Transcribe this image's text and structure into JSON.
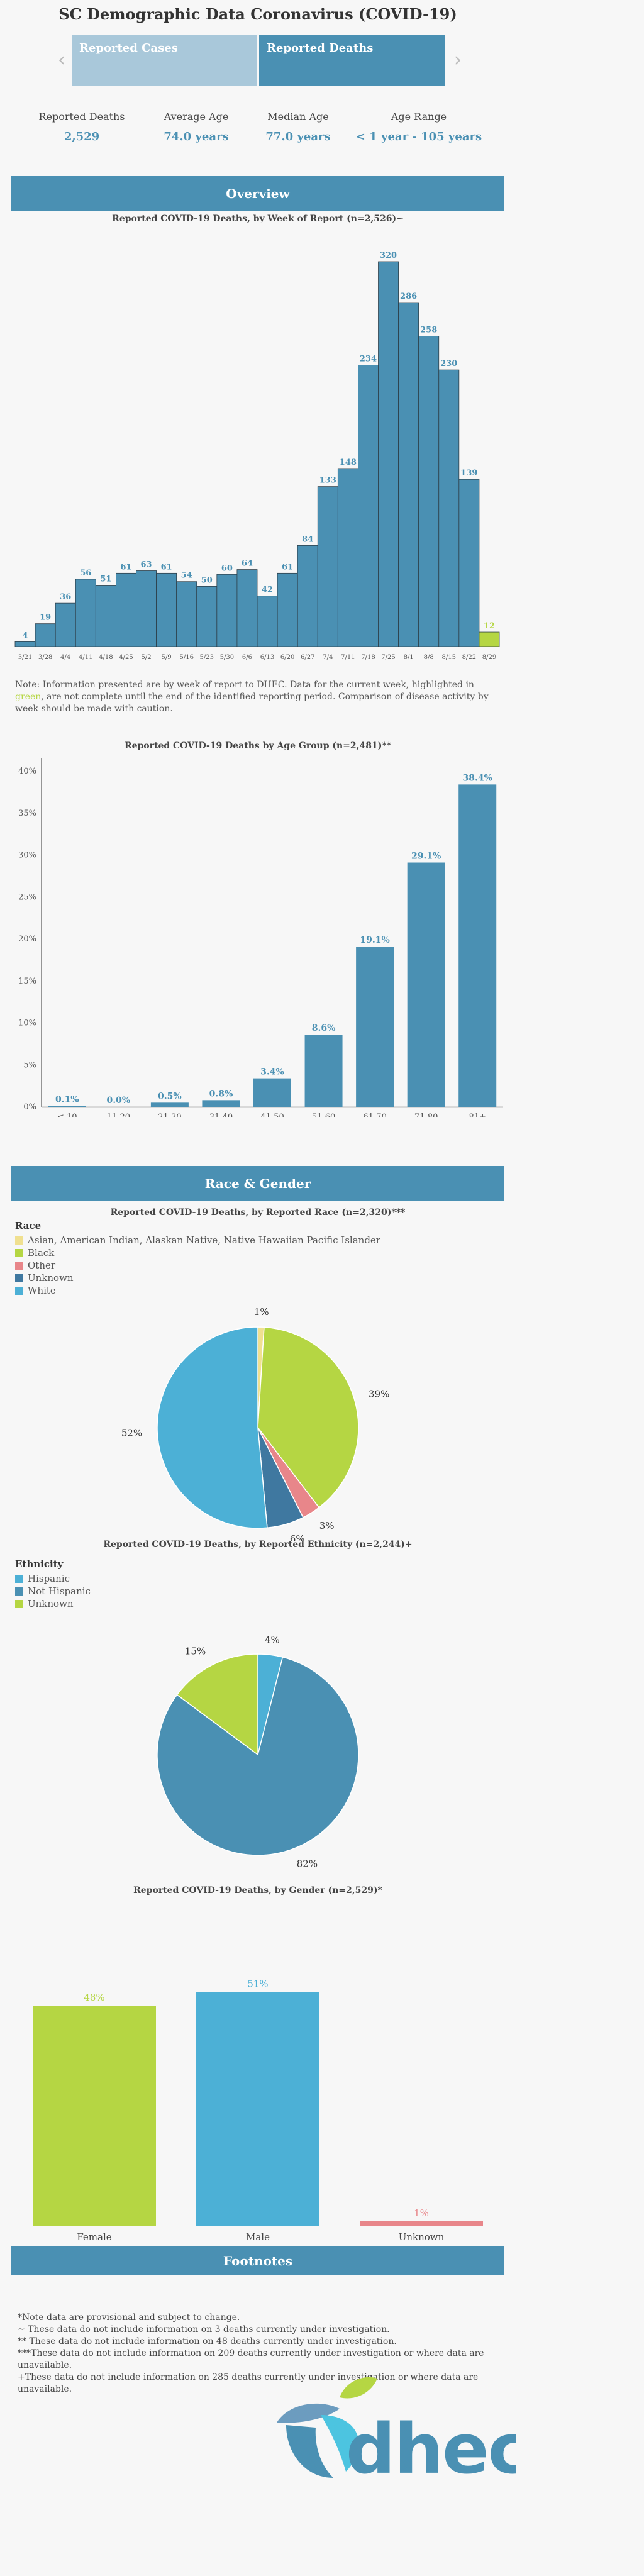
{
  "page_title": "SC Demographic Data Coronavirus (COVID-19)",
  "tabs": [
    {
      "label": "Reported Cases",
      "active": false
    },
    {
      "label": "Reported Deaths",
      "active": true
    }
  ],
  "nav": {
    "prev_icon": "chevron-left-icon",
    "next_icon": "chevron-right-icon"
  },
  "stats": [
    {
      "label": "Reported Deaths",
      "value": "2,529"
    },
    {
      "label": "Average Age",
      "value": "74.0 years"
    },
    {
      "label": "Median Age",
      "value": "77.0 years"
    },
    {
      "label": "Age Range",
      "value": "< 1 year - 105 years"
    }
  ],
  "sections": {
    "overview": "Overview",
    "race_gender": "Race & Gender",
    "footnotes": "Footnotes"
  },
  "note": {
    "before": "Note: Information presented are by week of report to DHEC. Data for the current week, highlighted in ",
    "highlight": "green",
    "after": ", are not complete until the end of the identified reporting period. Comparison of disease activity by week should be made with caution."
  },
  "colors": {
    "blue": "#4a90b3",
    "green": "#b5d643",
    "sky": "#4cb0d6",
    "salmon": "#e8868a",
    "yellow": "#f0e090",
    "darkblue": "#3f78a0"
  },
  "chart_data": [
    {
      "type": "bar",
      "title": "Reported COVID-19 Deaths, by Week of Report (n=2,526)~",
      "categories": [
        "3/21",
        "3/28",
        "4/4",
        "4/11",
        "4/18",
        "4/25",
        "5/2",
        "5/9",
        "5/16",
        "5/23",
        "5/30",
        "6/6",
        "6/13",
        "6/20",
        "6/27",
        "7/4",
        "7/11",
        "7/18",
        "7/25",
        "8/1",
        "8/8",
        "8/15",
        "8/22",
        "8/29"
      ],
      "values": [
        4,
        19,
        36,
        56,
        51,
        61,
        63,
        61,
        54,
        50,
        60,
        64,
        42,
        61,
        84,
        133,
        148,
        234,
        320,
        286,
        258,
        230,
        139,
        12
      ],
      "highlight_last": true
    },
    {
      "type": "bar",
      "title": "Reported COVID-19 Deaths by Age Group (n=2,481)**",
      "categories": [
        "≤ 10",
        "11-20",
        "21-30",
        "31-40",
        "41-50",
        "51-60",
        "61-70",
        "71-80",
        "81+"
      ],
      "values": [
        0.1,
        0.0,
        0.5,
        0.8,
        3.4,
        8.6,
        19.1,
        29.1,
        38.4
      ],
      "value_labels": [
        "0.1%",
        "0.0%",
        "0.5%",
        "0.8%",
        "3.4%",
        "8.6%",
        "19.1%",
        "29.1%",
        "38.4%"
      ],
      "y_ticks": [
        "0%",
        "5%",
        "10%",
        "15%",
        "20%",
        "25%",
        "30%",
        "35%",
        "40%"
      ],
      "ylim": [
        0,
        40
      ]
    },
    {
      "type": "pie",
      "title": "Reported COVID-19 Deaths, by Reported Race (n=2,320)***",
      "legend_title": "Race",
      "slices": [
        {
          "name": "Asian, American Indian, Alaskan Native, Native Hawaiian Pacific Islander",
          "value": 1,
          "label": "1%",
          "color": "#f0e090"
        },
        {
          "name": "Black",
          "value": 39,
          "label": "39%",
          "color": "#b5d643"
        },
        {
          "name": "Other",
          "value": 3,
          "label": "3%",
          "color": "#e8868a"
        },
        {
          "name": "Unknown",
          "value": 6,
          "label": "6%",
          "color": "#3f78a0"
        },
        {
          "name": "White",
          "value": 52,
          "label": "52%",
          "color": "#4cb0d6"
        }
      ]
    },
    {
      "type": "pie",
      "title": "Reported COVID-19 Deaths, by Reported Ethnicity (n=2,244)+",
      "legend_title": "Ethnicity",
      "slices": [
        {
          "name": "Hispanic",
          "value": 4,
          "label": "4%",
          "color": "#4cb0d6"
        },
        {
          "name": "Not Hispanic",
          "value": 82,
          "label": "82%",
          "color": "#4a90b3"
        },
        {
          "name": "Unknown",
          "value": 15,
          "label": "15%",
          "color": "#b5d643"
        }
      ]
    },
    {
      "type": "bar",
      "title": "Reported COVID-19 Deaths, by Gender (n=2,529)*",
      "categories": [
        "Female",
        "Male",
        "Unknown"
      ],
      "values": [
        48,
        51,
        1
      ],
      "value_labels": [
        "48%",
        "51%",
        "1%"
      ],
      "colors": [
        "#b5d643",
        "#4cb0d6",
        "#e8868a"
      ]
    }
  ],
  "footnotes": [
    "*Note data are provisional and subject to change.",
    "~ These data do not include information on 3 deaths currently under investigation.",
    "** These data do not include information on 48 deaths currently under investigation.",
    "***These data do not include information on 209 deaths currently under investigation or where data are unavailable.",
    "+These data do not include information on 285 deaths currently under investigation or where data are unavailable."
  ],
  "logo_text": "dhec"
}
